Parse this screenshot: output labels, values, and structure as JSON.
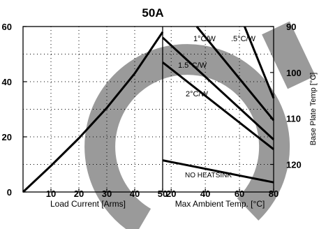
{
  "chart_data": {
    "type": "line",
    "title": "50A",
    "left_panel": {
      "xlabel": "Load Current [Arms]",
      "xlim": [
        0,
        50
      ],
      "xticks": [
        10,
        20,
        30,
        40,
        50
      ],
      "ylim": [
        0,
        60
      ],
      "yticks": [
        0,
        20,
        40,
        60
      ],
      "series": [
        {
          "x": [
            0,
            10,
            20,
            30,
            40,
            50
          ],
          "y": [
            0,
            9.5,
            19.5,
            30.5,
            43,
            58
          ]
        }
      ]
    },
    "right_panel": {
      "xlabel": "Max Ambient Temp. [°C]",
      "xlim": [
        15,
        80
      ],
      "xticks": [
        20,
        40,
        60,
        80
      ],
      "y2label": "Base Plate Temp [°C]",
      "y2ticks": [
        90,
        100,
        110,
        120
      ],
      "series": [
        {
          "name": "1°C/W",
          "x": [
            35,
            80
          ],
          "y": [
            60,
            26
          ]
        },
        {
          "name": ".5°C/W",
          "x": [
            63,
            80
          ],
          "y": [
            60,
            34
          ]
        },
        {
          "name": "1.5°C/W",
          "x": [
            15,
            80
          ],
          "y": [
            56,
            19
          ]
        },
        {
          "name": "2°C/W",
          "x": [
            15,
            80
          ],
          "y": [
            47,
            15.5
          ]
        },
        {
          "name": "NO HEATSINK",
          "x": [
            15,
            80
          ],
          "y": [
            11.5,
            3.5
          ]
        }
      ]
    },
    "grid": true,
    "grid_style": "dotted"
  }
}
